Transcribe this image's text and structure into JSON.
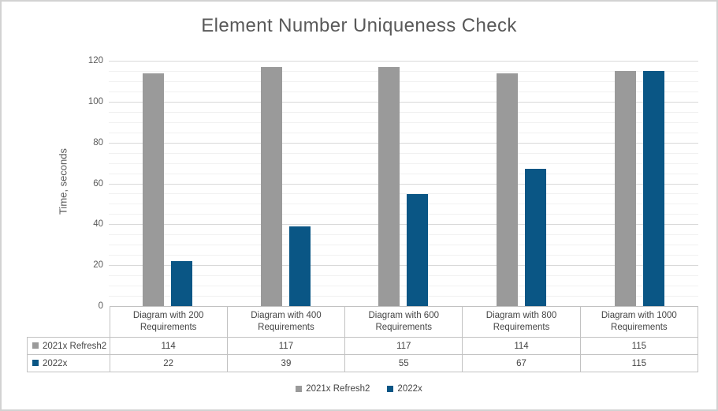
{
  "chart_data": {
    "type": "bar",
    "title": "Element Number Uniqueness Check",
    "xlabel": "",
    "ylabel": "Time, seconds",
    "categories": [
      "Diagram with 200 Requirements",
      "Diagram with 400 Requirements",
      "Diagram with 600 Requirements",
      "Diagram with 800 Requirements",
      "Diagram with 1000 Requirements"
    ],
    "series": [
      {
        "name": "2021x Refresh2",
        "color": "#9a9a9a",
        "values": [
          114,
          117,
          117,
          114,
          115
        ]
      },
      {
        "name": "2022x",
        "color": "#0a5685",
        "values": [
          22,
          39,
          55,
          67,
          115
        ]
      }
    ],
    "ylim": [
      0,
      120
    ],
    "yticks": [
      0,
      20,
      40,
      60,
      80,
      100,
      120
    ],
    "major_tick_step": 20,
    "minor_tick_step": 5,
    "grid": true,
    "legend_position": "bottom",
    "data_table_shown": true
  },
  "colors": {
    "title_text": "#595959",
    "axis_text": "#595959",
    "table_text": "#454545",
    "major_gridline": "#d9d9d9",
    "minor_gridline": "#f1f1f1",
    "table_border": "#c2c2c2",
    "frame_border": "#d2d2d2"
  }
}
